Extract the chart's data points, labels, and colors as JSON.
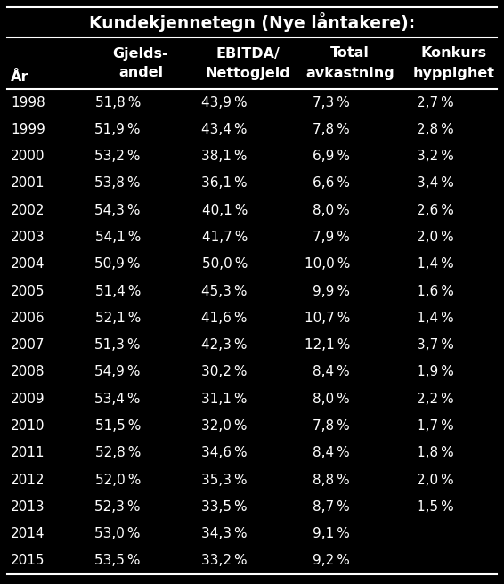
{
  "title": "Kundekjennetegn (Nye låntakere):",
  "col_header_line1": [
    "Gjelds-",
    "EBITDA/",
    "Total",
    "Konkurs"
  ],
  "col_header_line2": [
    "andel",
    "Nettogjeld",
    "avkastning",
    "hyppighet"
  ],
  "year_label": "År",
  "years": [
    1998,
    1999,
    2000,
    2001,
    2002,
    2003,
    2004,
    2005,
    2006,
    2007,
    2008,
    2009,
    2010,
    2011,
    2012,
    2013,
    2014,
    2015
  ],
  "gjelds_andel": [
    "51,8 %",
    "51,9 %",
    "53,2 %",
    "53,8 %",
    "54,3 %",
    "54,1 %",
    "50,9 %",
    "51,4 %",
    "52,1 %",
    "51,3 %",
    "54,9 %",
    "53,4 %",
    "51,5 %",
    "52,8 %",
    "52,0 %",
    "52,3 %",
    "53,0 %",
    "53,5 %"
  ],
  "ebitda": [
    "43,9 %",
    "43,4 %",
    "38,1 %",
    "36,1 %",
    "40,1 %",
    "41,7 %",
    "50,0 %",
    "45,3 %",
    "41,6 %",
    "42,3 %",
    "30,2 %",
    "31,1 %",
    "32,0 %",
    "34,6 %",
    "35,3 %",
    "33,5 %",
    "34,3 %",
    "33,2 %"
  ],
  "total_avkastning": [
    "7,3 %",
    "7,8 %",
    "6,9 %",
    "6,6 %",
    "8,0 %",
    "7,9 %",
    "10,0 %",
    "9,9 %",
    "10,7 %",
    "12,1 %",
    "8,4 %",
    "8,0 %",
    "7,8 %",
    "8,4 %",
    "8,8 %",
    "8,7 %",
    "9,1 %",
    "9,2 %"
  ],
  "konkurs": [
    "2,7 %",
    "2,8 %",
    "3,2 %",
    "3,4 %",
    "2,6 %",
    "2,0 %",
    "1,4 %",
    "1,6 %",
    "1,4 %",
    "3,7 %",
    "1,9 %",
    "2,2 %",
    "1,7 %",
    "1,8 %",
    "2,0 %",
    "1,5 %",
    "",
    ""
  ],
  "bg_color": "#000000",
  "text_color": "#ffffff",
  "data_font_size": 11.0,
  "header_font_size": 11.5,
  "title_font_size": 13.5,
  "line_color": "#ffffff",
  "line_width": 1.5
}
